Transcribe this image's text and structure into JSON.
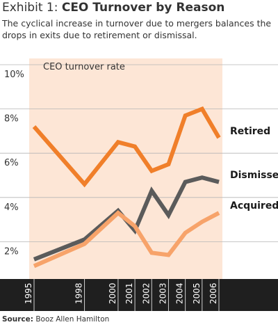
{
  "header": {
    "exhibit": "Exhibit 1:",
    "title": "CEO Turnover by Reason",
    "subtitle": "The cyclical increase in turnover due to mergers balances the drops in exits due to retirement or dismissal."
  },
  "source": {
    "label": "Source:",
    "text": "Booz Allen Hamilton"
  },
  "colors": {
    "panel": "#fde6d6",
    "axis_band": "#1f1f1f",
    "retired": "#f07f2a",
    "dismissed": "#5b5b5b",
    "acquired": "#f7a36a"
  },
  "chart_data": {
    "type": "line",
    "ylabel": "CEO turnover rate",
    "ylim": [
      0,
      10
    ],
    "y_ticks": [
      "2%",
      "4%",
      "6%",
      "8%",
      "10%"
    ],
    "x_ticks": [
      "1995",
      "1998",
      "2000",
      "2001",
      "2002",
      "2003",
      "2004",
      "2005",
      "2006"
    ],
    "grid": true,
    "legend": "inline-right",
    "series": [
      {
        "name": "Retired",
        "color": "#f07f2a",
        "x": [
          1995,
          1998,
          2000,
          2001,
          2002,
          2003,
          2004,
          2005,
          2006
        ],
        "values": [
          7.2,
          4.6,
          6.5,
          6.3,
          5.2,
          5.5,
          7.7,
          8.0,
          6.7
        ]
      },
      {
        "name": "Dismissed",
        "color": "#5b5b5b",
        "x": [
          1995,
          1998,
          2000,
          2001,
          2002,
          2003,
          2004,
          2005,
          2006
        ],
        "values": [
          1.2,
          2.1,
          3.4,
          2.5,
          4.3,
          3.2,
          4.7,
          4.9,
          4.7
        ]
      },
      {
        "name": "Acquired",
        "color": "#f7a36a",
        "x": [
          1995,
          1998,
          2000,
          2001,
          2002,
          2003,
          2004,
          2005,
          2006
        ],
        "values": [
          0.9,
          1.9,
          3.3,
          2.7,
          1.5,
          1.4,
          2.4,
          2.9,
          3.3
        ]
      }
    ]
  }
}
